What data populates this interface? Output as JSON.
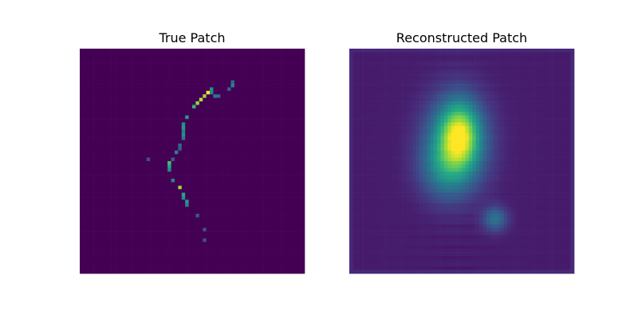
{
  "figure": {
    "colormap": "viridis",
    "panels": [
      "True Patch",
      "Reconstructed Patch"
    ]
  },
  "chart_data": [
    {
      "type": "heatmap",
      "title": "True Patch",
      "grid_size": [
        64,
        64
      ],
      "axes_visible": false,
      "colormap": "viridis",
      "value_range": [
        0,
        1
      ],
      "background_value": 0.0,
      "description_values": "sparse thin curved line of bright pixels on dark background",
      "pixels": [
        {
          "row": 9,
          "col": 43,
          "v": 0.35
        },
        {
          "row": 10,
          "col": 43,
          "v": 0.45
        },
        {
          "row": 11,
          "col": 42,
          "v": 0.3
        },
        {
          "row": 11,
          "col": 37,
          "v": 0.5
        },
        {
          "row": 12,
          "col": 37,
          "v": 0.45
        },
        {
          "row": 12,
          "col": 36,
          "v": 1.0
        },
        {
          "row": 13,
          "col": 35,
          "v": 0.85
        },
        {
          "row": 13,
          "col": 38,
          "v": 0.4
        },
        {
          "row": 13,
          "col": 39,
          "v": 0.35
        },
        {
          "row": 14,
          "col": 34,
          "v": 0.9
        },
        {
          "row": 15,
          "col": 33,
          "v": 0.85
        },
        {
          "row": 16,
          "col": 32,
          "v": 0.65
        },
        {
          "row": 19,
          "col": 30,
          "v": 0.55
        },
        {
          "row": 21,
          "col": 29,
          "v": 0.5
        },
        {
          "row": 22,
          "col": 29,
          "v": 0.55
        },
        {
          "row": 23,
          "col": 29,
          "v": 0.45
        },
        {
          "row": 24,
          "col": 29,
          "v": 0.5
        },
        {
          "row": 25,
          "col": 29,
          "v": 0.4
        },
        {
          "row": 27,
          "col": 28,
          "v": 0.35
        },
        {
          "row": 28,
          "col": 28,
          "v": 0.3
        },
        {
          "row": 29,
          "col": 27,
          "v": 0.45
        },
        {
          "row": 31,
          "col": 26,
          "v": 0.3
        },
        {
          "row": 31,
          "col": 19,
          "v": 0.25
        },
        {
          "row": 32,
          "col": 25,
          "v": 0.7
        },
        {
          "row": 33,
          "col": 25,
          "v": 0.6
        },
        {
          "row": 34,
          "col": 25,
          "v": 0.5
        },
        {
          "row": 37,
          "col": 26,
          "v": 0.45
        },
        {
          "row": 39,
          "col": 28,
          "v": 0.85
        },
        {
          "row": 41,
          "col": 29,
          "v": 0.6
        },
        {
          "row": 42,
          "col": 29,
          "v": 0.5
        },
        {
          "row": 43,
          "col": 30,
          "v": 0.55
        },
        {
          "row": 44,
          "col": 30,
          "v": 0.45
        },
        {
          "row": 47,
          "col": 33,
          "v": 0.3
        },
        {
          "row": 51,
          "col": 35,
          "v": 0.25
        },
        {
          "row": 54,
          "col": 35,
          "v": 0.25
        }
      ]
    },
    {
      "type": "heatmap",
      "title": "Reconstructed Patch",
      "grid_size": [
        64,
        64
      ],
      "axes_visible": false,
      "colormap": "viridis",
      "value_range": [
        0,
        1
      ],
      "background_value": 0.08,
      "blobs": [
        {
          "center_row": 26,
          "center_col": 30,
          "sigma_row": 9,
          "sigma_col": 6,
          "peak": 0.55
        },
        {
          "center_row": 24,
          "center_col": 31,
          "sigma_row": 6,
          "sigma_col": 3.5,
          "peak": 0.45
        },
        {
          "center_row": 34,
          "center_col": 26,
          "sigma_row": 6,
          "sigma_col": 5,
          "peak": 0.2
        },
        {
          "center_row": 48,
          "center_col": 41,
          "sigma_row": 2.5,
          "sigma_col": 2.5,
          "peak": 0.3
        }
      ]
    }
  ]
}
